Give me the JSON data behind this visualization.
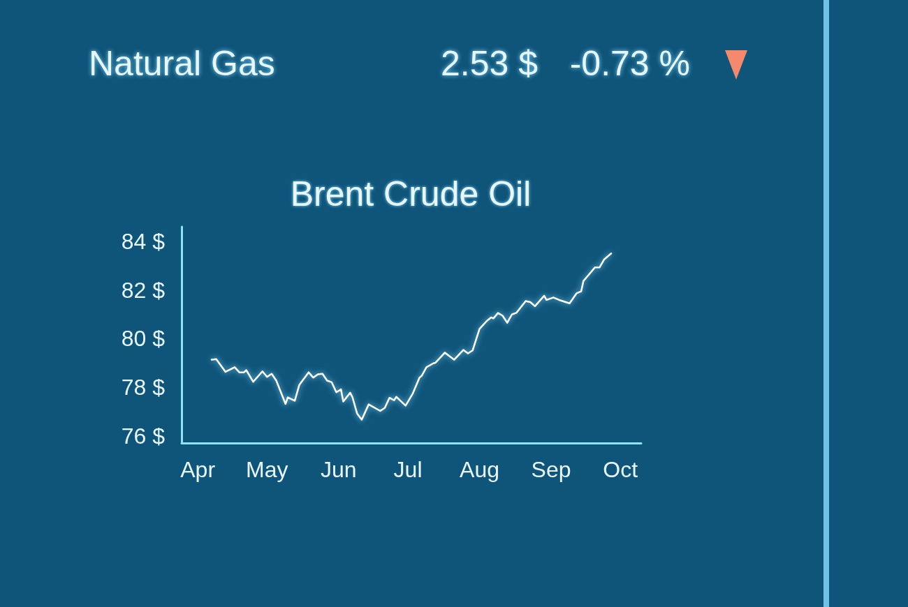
{
  "chart_data": {
    "type": "line",
    "title": "Brent Crude Oil",
    "annotations": [
      "Natural Gas",
      "2.53 $",
      "-0.73 %"
    ],
    "x": [
      "--04-07",
      "--04-09",
      "--04-13",
      "--04-17",
      "--04-19",
      "--04-21",
      "--04-22",
      "--04-25",
      "--04-29",
      "--05-01",
      "--05-03",
      "--05-05",
      "--05-09",
      "--05-10",
      "--05-13",
      "--05-15",
      "--05-19",
      "--05-21",
      "--05-23",
      "--05-25",
      "--05-27",
      "--05-29",
      "--05-31",
      "--06-02",
      "--06-03",
      "--06-06",
      "--06-07",
      "--06-09",
      "--06-11",
      "--06-14",
      "--06-19",
      "--06-21",
      "--06-23",
      "--06-25",
      "--06-26",
      "--06-30",
      "--07-03",
      "--07-06",
      "--07-07",
      "--07-09",
      "--07-12",
      "--07-13",
      "--07-17",
      "--07-21",
      "--07-25",
      "--07-27",
      "--07-29",
      "--08-01",
      "--08-04",
      "--08-06",
      "--08-07",
      "--08-09",
      "--08-11",
      "--08-13",
      "--08-15",
      "--08-17",
      "--08-21",
      "--08-23",
      "--08-25",
      "--08-29",
      "--08-30",
      "--09-02",
      "--09-05",
      "--09-09",
      "--09-12",
      "--09-14",
      "--09-15",
      "--09-17",
      "--09-20",
      "--09-22",
      "--09-24",
      "--09-27"
    ],
    "series": [
      {
        "color": "#ffffff",
        "values": [
          79.13,
          79.15,
          78.63,
          78.82,
          78.61,
          78.61,
          78.7,
          78.22,
          78.65,
          78.42,
          78.55,
          78.27,
          77.31,
          77.58,
          77.44,
          78.1,
          78.61,
          78.39,
          78.53,
          78.55,
          78.27,
          78.2,
          77.79,
          77.91,
          77.41,
          77.77,
          77.58,
          76.91,
          76.66,
          77.29,
          77.02,
          77.15,
          77.56,
          77.46,
          77.6,
          77.24,
          77.72,
          78.39,
          78.47,
          78.82,
          78.98,
          79.01,
          79.42,
          79.13,
          79.53,
          79.39,
          79.51,
          80.4,
          80.71,
          80.87,
          80.83,
          81.05,
          80.94,
          80.65,
          80.99,
          81.06,
          81.54,
          81.5,
          81.33,
          81.76,
          81.59,
          81.69,
          81.57,
          81.45,
          81.86,
          81.94,
          82.37,
          82.59,
          82.93,
          82.93,
          83.26,
          83.5
        ]
      }
    ],
    "xlim": [
      "--03-25",
      "--10-10"
    ],
    "xticks": [
      {
        "value": "--04-01",
        "label": "Apr"
      },
      {
        "value": "--05-01",
        "label": "May"
      },
      {
        "value": "--06-01",
        "label": "Jun"
      },
      {
        "value": "--07-01",
        "label": "Jul"
      },
      {
        "value": "--08-01",
        "label": "Aug"
      },
      {
        "value": "--09-01",
        "label": "Sep"
      },
      {
        "value": "--10-01",
        "label": "Oct"
      }
    ],
    "ylim": [
      75.7,
      84.6
    ],
    "yticks": [
      {
        "value": 76,
        "label": "76 $"
      },
      {
        "value": 78,
        "label": "78 $"
      },
      {
        "value": 80,
        "label": "80 $"
      },
      {
        "value": 82,
        "label": "82 $"
      },
      {
        "value": 84,
        "label": "84 $"
      }
    ],
    "grid": false,
    "marker": "none",
    "line_style": "solid"
  }
}
